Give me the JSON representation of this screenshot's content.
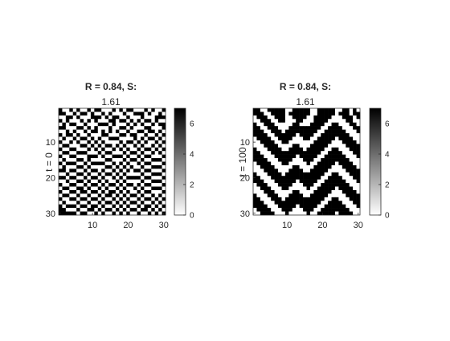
{
  "chart_data": [
    {
      "type": "heatmap",
      "title": "R = 0.84, S:",
      "subtitle": "1.61",
      "ylabel": "t = 0",
      "xlabel": "",
      "x_ticks": [
        10,
        20,
        30
      ],
      "y_ticks": [
        10,
        20,
        30
      ],
      "xlim": [
        0.5,
        30.5
      ],
      "ylim": [
        0.5,
        30.5
      ],
      "grid": "30x30",
      "colormap": "gray-reversed",
      "colorbar": {
        "min": 0,
        "max": 7,
        "ticks": [
          0,
          2,
          4,
          6
        ]
      },
      "rows": [
        "100101001011000101011000101001",
        "110010110100101000100111010010",
        "001101000111010110010001000111",
        "101000101010001101101010110100",
        "010110010001110100010101001011",
        "110001101010001001101000110001",
        "001010010110101010010011011010",
        "101101001000110001101100100101",
        "010010110101001110000101011010",
        "100101001010100001011010100101",
        "011000110101011010100101001010",
        "100110001010100101010010110101",
        "011001110001011000101101001010",
        "100110001110100111010010110001",
        "010001101000011000101101001110",
        "101110010111100101010010110001",
        "010001101000011010101001001110",
        "110110010110100101010110110001",
        "001001101001011010100001001110",
        "110110010110100101011110110001",
        "001001101001010010100001001110",
        "100110010110101101011010110001",
        "011001101001010010100101001110",
        "100110110110101101010010110001",
        "011001001001011010101101001010",
        "100110110110100101010010110101",
        "010001001001011010101101001010",
        "101110110110100101010010110101",
        "110001001101011010101101101010",
        "111110110010100101010010010101"
      ]
    },
    {
      "type": "heatmap",
      "title": "R = 0.84, S:",
      "subtitle": "1.61",
      "ylabel": "t = 100",
      "xlabel": "",
      "x_ticks": [
        10,
        20,
        30
      ],
      "y_ticks": [
        10,
        20,
        30
      ],
      "xlim": [
        0.5,
        30.5
      ],
      "ylim": [
        0.5,
        30.5
      ],
      "grid": "30x30",
      "colormap": "gray-reversed",
      "colorbar": {
        "min": 0,
        "max": 7,
        "ticks": [
          0,
          2,
          4,
          6
        ]
      },
      "rows": [
        "110011111001111100111110011010",
        "111001111011111100111110111011",
        "011100111001111001111100011101",
        "001110011000110001111000001100",
        "100111000001100011110011000110",
        "110011100011111111100111100011",
        "111001110111111111001111110001",
        "111100111111011110011111111000",
        "011110011110001100111110111100",
        "001111001100000001111100011110",
        "000111100001100011111000001111",
        "100011110011110111110011000111",
        "110001111111111111100111100011",
        "111000111111011111001111110001",
        "111100011110001110011111111000",
        "011110001100000100111110111100",
        "001111000001100001111100011110",
        "000111100011110011111000001111",
        "100011110111111111110011000111",
        "110001111111111111100111100011",
        "111000111111011111001111110001",
        "011100011110001110011111111000",
        "001110001100000100111110111100",
        "000111000001100001111100011110",
        "100011100011110011111000001111",
        "110001110111111111110011000111",
        "111000111111111111100111100011",
        "111100011111011111001111110001",
        "011110001110001110011111111000",
        "001111000100000100111110111100"
      ]
    }
  ]
}
